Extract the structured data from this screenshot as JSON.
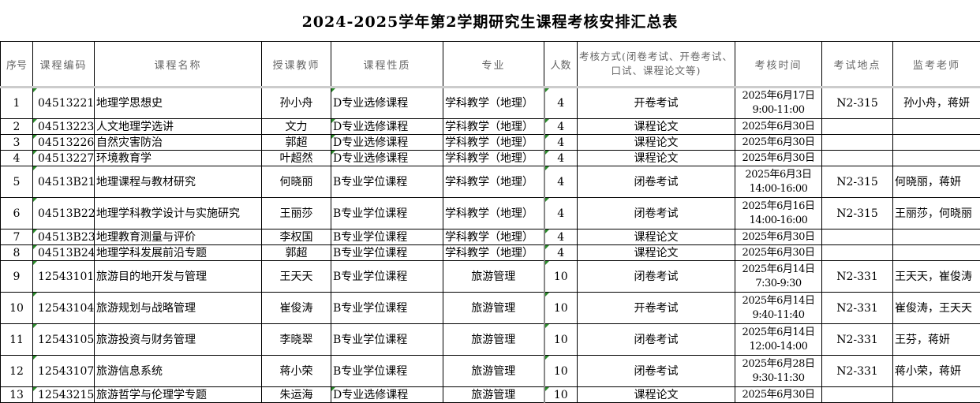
{
  "title": "2024-2025学年第2学期研究生课程考核安排汇总表",
  "headers": [
    "序号",
    "课程编码",
    "课程名称",
    "授课教师",
    "课程性质",
    "专业",
    "人数",
    "考核方式(闭卷考试、开卷考试、口试、课程论文等)",
    "考核时间",
    "考试地点",
    "监考老师"
  ],
  "rows": [
    {
      "no": "1",
      "code": "04513221",
      "name": "地理学思想史",
      "teacher": "孙小舟",
      "nature": "D专业选修课程",
      "major": "学科教学（地理）",
      "count": "4",
      "method": "开卷考试",
      "date": "2025年6月17日",
      "time": "9:00-11:00",
      "place": "N2-315",
      "proctor": "孙小舟，蒋妍"
    },
    {
      "no": "2",
      "code": "04513223",
      "name": "人文地理学选讲",
      "teacher": "文力",
      "nature": "D专业选修课程",
      "major": "学科教学（地理）",
      "count": "4",
      "method": "课程论文",
      "date": "2025年6月30日",
      "time": "",
      "place": "",
      "proctor": ""
    },
    {
      "no": "3",
      "code": "04513226",
      "name": "自然灾害防治",
      "teacher": "郭超",
      "nature": "D专业选修课程",
      "major": "学科教学（地理）",
      "count": "4",
      "method": "课程论文",
      "date": "2025年6月30日",
      "time": "",
      "place": "",
      "proctor": ""
    },
    {
      "no": "4",
      "code": "04513227",
      "name": "环境教育学",
      "teacher": "叶超然",
      "nature": "D专业选修课程",
      "major": "学科教学（地理）",
      "count": "4",
      "method": "课程论文",
      "date": "2025年6月30日",
      "time": "",
      "place": "",
      "proctor": ""
    },
    {
      "no": "5",
      "code": "04513B21",
      "name": "地理课程与教材研究",
      "teacher": "何晓丽",
      "nature": "B专业学位课程",
      "major": "学科教学（地理）",
      "count": "4",
      "method": "闭卷考试",
      "date": "2025年6月3日",
      "time": "14:00-16:00",
      "place": "N2-315",
      "proctor": "何晓丽，蒋妍"
    },
    {
      "no": "6",
      "code": "04513B22",
      "name": "地理学科教学设计与实施研究",
      "teacher": "王丽莎",
      "nature": "B专业学位课程",
      "major": "学科教学（地理）",
      "count": "4",
      "method": "闭卷考试",
      "date": "2025年6月16日",
      "time": "14:00-16:00",
      "place": "N2-315",
      "proctor": "王丽莎，何晓丽"
    },
    {
      "no": "7",
      "code": "04513B23",
      "name": "地理教育测量与评价",
      "teacher": "李权国",
      "nature": "B专业学位课程",
      "major": "学科教学（地理）",
      "count": "4",
      "method": "课程论文",
      "date": "2025年6月30日",
      "time": "",
      "place": "",
      "proctor": ""
    },
    {
      "no": "8",
      "code": "04513B24",
      "name": "地理学科发展前沿专题",
      "teacher": "郭超",
      "nature": "B专业学位课程",
      "major": "学科教学（地理）",
      "count": "4",
      "method": "课程论文",
      "date": "2025年6月30日",
      "time": "",
      "place": "",
      "proctor": ""
    },
    {
      "no": "9",
      "code": "12543101",
      "name": "旅游目的地开发与管理",
      "teacher": "王天天",
      "nature": "B专业学位课程",
      "major": "旅游管理",
      "count": "10",
      "method": "闭卷考试",
      "date": "2025年6月14日",
      "time": "7:30-9:30",
      "place": "N2-331",
      "proctor": "王天天，崔俊涛"
    },
    {
      "no": "10",
      "code": "12543104",
      "name": "旅游规划与战略管理",
      "teacher": "崔俊涛",
      "nature": "B专业学位课程",
      "major": "旅游管理",
      "count": "10",
      "method": "开卷考试",
      "date": "2025年6月14日",
      "time": "9:40-11:40",
      "place": "N2-331",
      "proctor": "崔俊涛，王天天"
    },
    {
      "no": "11",
      "code": "12543105",
      "name": "旅游投资与财务管理",
      "teacher": "李晓翠",
      "nature": "B专业学位课程",
      "major": "旅游管理",
      "count": "10",
      "method": "闭卷考试",
      "date": "2025年6月14日",
      "time": "12:00-14:00",
      "place": "N2-331",
      "proctor": "王芬，蒋妍"
    },
    {
      "no": "12",
      "code": "12543107",
      "name": "旅游信息系统",
      "teacher": "蒋小荣",
      "nature": "B专业学位课程",
      "major": "旅游管理",
      "count": "10",
      "method": "闭卷考试",
      "date": "2025年6月28日",
      "time": "9:30-11:30",
      "place": "N2-331",
      "proctor": "蒋小荣，蒋妍"
    },
    {
      "no": "13",
      "code": "12543215",
      "name": "旅游哲学与伦理学专题",
      "teacher": "朱运海",
      "nature": "D专业选修课程",
      "major": "旅游管理",
      "count": "10",
      "method": "课程论文",
      "date": "2025年6月30日",
      "time": "",
      "place": "",
      "proctor": ""
    }
  ]
}
